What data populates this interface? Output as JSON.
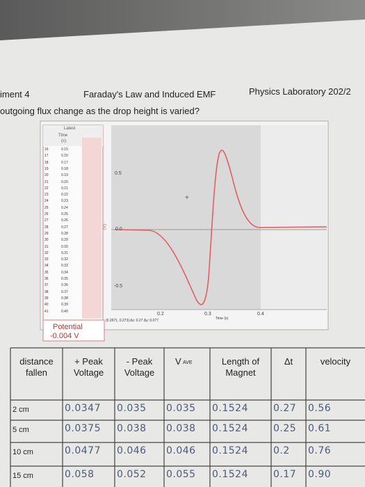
{
  "header": {
    "left": "iment 4",
    "center": "Faraday's Law and Induced EMF",
    "right": "Physics Laboratory 202/2"
  },
  "question": "outgoing flux change as the drop height is varied?",
  "screenshot": {
    "table_title": "Latest",
    "time_header": "Time",
    "time_unit": "(s)",
    "rows": [
      "16",
      "17",
      "18",
      "19",
      "20",
      "21",
      "22",
      "23",
      "24",
      "25",
      "26",
      "27",
      "28",
      "29",
      "30",
      "31",
      "32",
      "33",
      "34",
      "35",
      "36",
      "37",
      "38",
      "39",
      "40",
      "41"
    ],
    "times": [
      "0.15",
      "0.16",
      "0.17",
      "0.18",
      "0.19",
      "0.20",
      "0.21",
      "0.22",
      "0.23",
      "0.24",
      "0.25",
      "0.26",
      "0.27",
      "0.28",
      "0.29",
      "0.30",
      "0.31",
      "0.32",
      "0.33",
      "0.34",
      "0.35",
      "0.36",
      "0.37",
      "0.38",
      "0.39",
      "0.40"
    ],
    "y_ticks": [
      "0.5",
      "0.0",
      "-0.5"
    ],
    "x_ticks": [
      "0.2",
      "0.3",
      "0.4"
    ],
    "x_axis_label": "Time (s)",
    "status": "(0.2671, 0.273) Δx: 0.27 Δy: 0.077",
    "readout_label": "Potential",
    "readout_value": "-0.004 V"
  },
  "table": {
    "headers": [
      [
        "distance",
        "fallen"
      ],
      [
        "+ Peak",
        "Voltage"
      ],
      [
        "- Peak",
        "Voltage"
      ],
      [
        "V",
        "AVE"
      ],
      [
        "Length of",
        "Magnet"
      ],
      [
        "Δt"
      ],
      [
        "velocity"
      ]
    ],
    "rows": [
      [
        "2 cm",
        "0.0347",
        "0.035",
        "0.035",
        "0.1524",
        "0.27",
        "0.56"
      ],
      [
        "5 cm",
        "0.0375",
        "0.038",
        "0.038",
        "0.1524",
        "0.25",
        "0.61"
      ],
      [
        "10 cm",
        "0.0477",
        "0.046",
        "0.046",
        "0.1524",
        "0.2",
        "0.76"
      ],
      [
        "15 cm",
        "0.058",
        "0.052",
        "0.055",
        "0.1524",
        "0.17",
        "0.90"
      ]
    ]
  }
}
